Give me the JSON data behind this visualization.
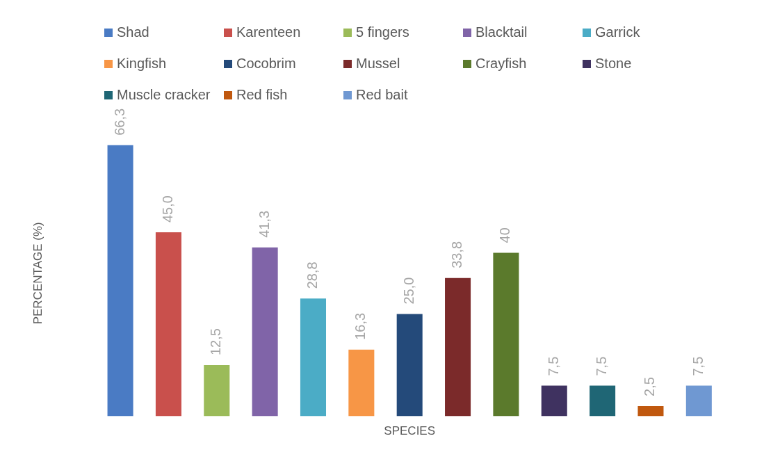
{
  "chart_data": {
    "type": "bar",
    "xlabel": "SPECIES",
    "ylabel": "PERCENTAGE (%)",
    "stacked": true,
    "categories": [
      null,
      null,
      null,
      null,
      null,
      null,
      null,
      null,
      null,
      null,
      null,
      null,
      null
    ],
    "series": [
      {
        "name": "Shad",
        "color": "#4a7bc4",
        "values": [
          66.3,
          null,
          null,
          null,
          null,
          null,
          null,
          null,
          null,
          null,
          null,
          null,
          null
        ],
        "value_labels": [
          "66,3",
          null,
          null,
          null,
          null,
          null,
          null,
          null,
          null,
          null,
          null,
          null,
          null
        ]
      },
      {
        "name": "Karenteen",
        "color": "#c9504c",
        "values": [
          null,
          45.0,
          null,
          null,
          null,
          null,
          null,
          null,
          null,
          null,
          null,
          null,
          null
        ],
        "value_labels": [
          null,
          "45,0",
          null,
          null,
          null,
          null,
          null,
          null,
          null,
          null,
          null,
          null,
          null
        ]
      },
      {
        "name": "5 fingers",
        "color": "#9bbb59",
        "values": [
          null,
          null,
          12.5,
          null,
          null,
          null,
          null,
          null,
          null,
          null,
          null,
          null,
          null
        ],
        "value_labels": [
          null,
          null,
          "12,5",
          null,
          null,
          null,
          null,
          null,
          null,
          null,
          null,
          null,
          null
        ]
      },
      {
        "name": "Blacktail",
        "color": "#8064a8",
        "values": [
          null,
          null,
          null,
          41.3,
          null,
          null,
          null,
          null,
          null,
          null,
          null,
          null,
          null
        ],
        "value_labels": [
          null,
          null,
          null,
          "41,3",
          null,
          null,
          null,
          null,
          null,
          null,
          null,
          null,
          null
        ]
      },
      {
        "name": "Garrick",
        "color": "#4bacc6",
        "values": [
          null,
          null,
          null,
          null,
          28.8,
          null,
          null,
          null,
          null,
          null,
          null,
          null,
          null
        ],
        "value_labels": [
          null,
          null,
          null,
          null,
          "28,8",
          null,
          null,
          null,
          null,
          null,
          null,
          null,
          null
        ]
      },
      {
        "name": "Kingfish",
        "color": "#f79646",
        "values": [
          null,
          null,
          null,
          null,
          null,
          16.3,
          null,
          null,
          null,
          null,
          null,
          null,
          null
        ],
        "value_labels": [
          null,
          null,
          null,
          null,
          null,
          "16,3",
          null,
          null,
          null,
          null,
          null,
          null,
          null
        ]
      },
      {
        "name": "Cocobrim",
        "color": "#244a7a",
        "values": [
          null,
          null,
          null,
          null,
          null,
          null,
          25.0,
          null,
          null,
          null,
          null,
          null,
          null
        ],
        "value_labels": [
          null,
          null,
          null,
          null,
          null,
          null,
          "25,0",
          null,
          null,
          null,
          null,
          null,
          null
        ]
      },
      {
        "name": "Mussel",
        "color": "#7b2a2a",
        "values": [
          null,
          null,
          null,
          null,
          null,
          null,
          null,
          33.8,
          null,
          null,
          null,
          null,
          null
        ],
        "value_labels": [
          null,
          null,
          null,
          null,
          null,
          null,
          null,
          "33,8",
          null,
          null,
          null,
          null,
          null
        ]
      },
      {
        "name": "Crayfish",
        "color": "#5b7a2c",
        "values": [
          null,
          null,
          null,
          null,
          null,
          null,
          null,
          null,
          40,
          null,
          null,
          null,
          null
        ],
        "value_labels": [
          null,
          null,
          null,
          null,
          null,
          null,
          null,
          null,
          "40",
          null,
          null,
          null,
          null
        ]
      },
      {
        "name": "Stone",
        "color": "#3f3260",
        "values": [
          null,
          null,
          null,
          null,
          null,
          null,
          null,
          null,
          null,
          7.5,
          null,
          null,
          null
        ],
        "value_labels": [
          null,
          null,
          null,
          null,
          null,
          null,
          null,
          null,
          null,
          "7,5",
          null,
          null,
          null
        ]
      },
      {
        "name": "Muscle cracker",
        "color": "#1f6675",
        "values": [
          null,
          null,
          null,
          null,
          null,
          null,
          null,
          null,
          null,
          null,
          7.5,
          null,
          null
        ],
        "value_labels": [
          null,
          null,
          null,
          null,
          null,
          null,
          null,
          null,
          null,
          null,
          "7,5",
          null,
          null
        ]
      },
      {
        "name": "Red fish",
        "color": "#c0580e",
        "values": [
          null,
          null,
          null,
          null,
          null,
          null,
          null,
          null,
          null,
          null,
          null,
          2.5,
          null
        ],
        "value_labels": [
          null,
          null,
          null,
          null,
          null,
          null,
          null,
          null,
          null,
          null,
          null,
          "2,5",
          null
        ]
      },
      {
        "name": "Red bait",
        "color": "#6f98d2",
        "values": [
          null,
          null,
          null,
          null,
          null,
          null,
          null,
          null,
          null,
          null,
          null,
          null,
          7.5
        ],
        "value_labels": [
          null,
          null,
          null,
          null,
          null,
          null,
          null,
          null,
          null,
          null,
          null,
          null,
          "7,5"
        ]
      }
    ],
    "legend": "top",
    "tick_labels": false
  }
}
